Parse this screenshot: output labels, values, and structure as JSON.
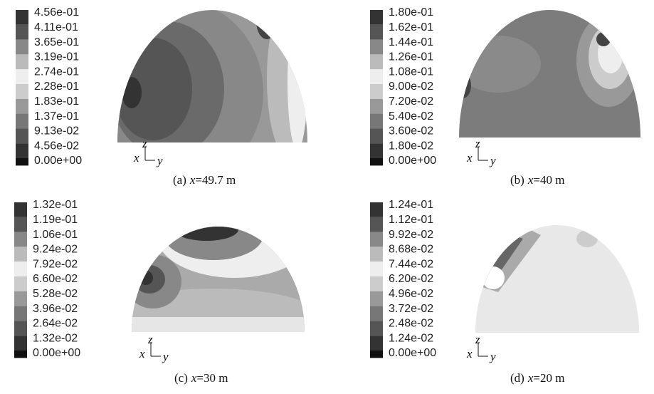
{
  "panels": [
    {
      "legend": [
        "4.56e-01",
        "4.11e-01",
        "3.65e-01",
        "3.19e-01",
        "2.74e-01",
        "2.28e-01",
        "1.83e-01",
        "1.37e-01",
        "9.13e-02",
        "4.56e-02",
        "0.00e+00"
      ],
      "caption": {
        "label": "(a)",
        "variable": "x",
        "value": "=49.7 m"
      },
      "axes": {
        "vertical": "z",
        "normal": "x",
        "horizontal": "y"
      }
    },
    {
      "legend": [
        "1.80e-01",
        "1.62e-01",
        "1.44e-01",
        "1.26e-01",
        "1.08e-01",
        "9.00e-02",
        "7.20e-02",
        "5.40e-02",
        "3.60e-02",
        "1.80e-02",
        "0.00e+00"
      ],
      "caption": {
        "label": "(b)",
        "variable": "x",
        "value": "=40 m"
      },
      "axes": {
        "vertical": "z",
        "normal": "x",
        "horizontal": "y"
      }
    },
    {
      "legend": [
        "1.32e-01",
        "1.19e-01",
        "1.06e-01",
        "9.24e-02",
        "7.92e-02",
        "6.60e-02",
        "5.28e-02",
        "3.96e-02",
        "2.64e-02",
        "1.32e-02",
        "0.00e+00"
      ],
      "caption": {
        "label": "(c)",
        "variable": "x",
        "value": "=30 m"
      },
      "axes": {
        "vertical": "z",
        "normal": "x",
        "horizontal": "y"
      }
    },
    {
      "legend": [
        "1.24e-01",
        "1.12e-01",
        "9.92e-02",
        "8.68e-02",
        "7.44e-02",
        "6.20e-02",
        "4.96e-02",
        "3.72e-02",
        "2.48e-02",
        "1.24e-02",
        "0.00e+00"
      ],
      "caption": {
        "label": "(d)",
        "variable": "x",
        "value": "=20 m"
      },
      "axes": {
        "vertical": "z",
        "normal": "x",
        "horizontal": "y"
      }
    }
  ]
}
